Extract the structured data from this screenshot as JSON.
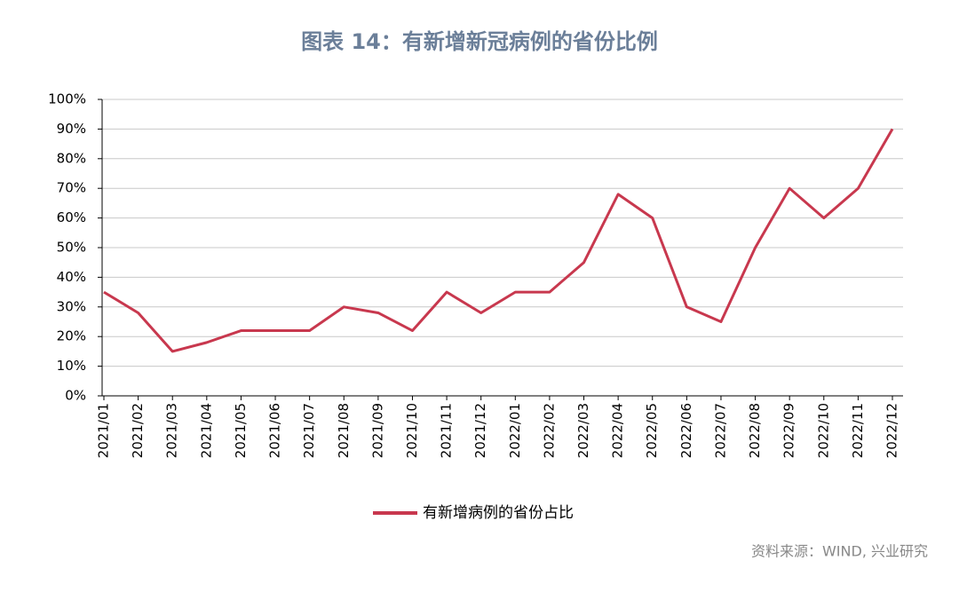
{
  "chart_data": {
    "type": "line",
    "title": "图表 14：有新增新冠病例的省份比例",
    "source": "资料来源：WIND, 兴业研究",
    "categories": [
      "2021/01",
      "2021/02",
      "2021/03",
      "2021/04",
      "2021/05",
      "2021/06",
      "2021/07",
      "2021/08",
      "2021/09",
      "2021/10",
      "2021/11",
      "2021/12",
      "2022/01",
      "2022/02",
      "2022/03",
      "2022/04",
      "2022/05",
      "2022/06",
      "2022/07",
      "2022/08",
      "2022/09",
      "2022/10",
      "2022/11",
      "2022/12"
    ],
    "series": [
      {
        "name": "有新增病例的省份占比",
        "color": "#c8384e",
        "values": [
          35,
          28,
          15,
          18,
          22,
          22,
          22,
          30,
          28,
          22,
          35,
          28,
          35,
          35,
          45,
          68,
          60,
          30,
          25,
          50,
          70,
          60,
          70,
          90
        ]
      }
    ],
    "ylim": [
      0,
      100
    ],
    "yticks": [
      {
        "value": 0,
        "label": "0%"
      },
      {
        "value": 10,
        "label": "10%"
      },
      {
        "value": 20,
        "label": "20%"
      },
      {
        "value": 30,
        "label": "30%"
      },
      {
        "value": 40,
        "label": "40%"
      },
      {
        "value": 50,
        "label": "50%"
      },
      {
        "value": 60,
        "label": "60%"
      },
      {
        "value": 70,
        "label": "70%"
      },
      {
        "value": 80,
        "label": "80%"
      },
      {
        "value": 90,
        "label": "90%"
      },
      {
        "value": 100,
        "label": "100%"
      }
    ],
    "grid": true,
    "legend": "bottom"
  }
}
